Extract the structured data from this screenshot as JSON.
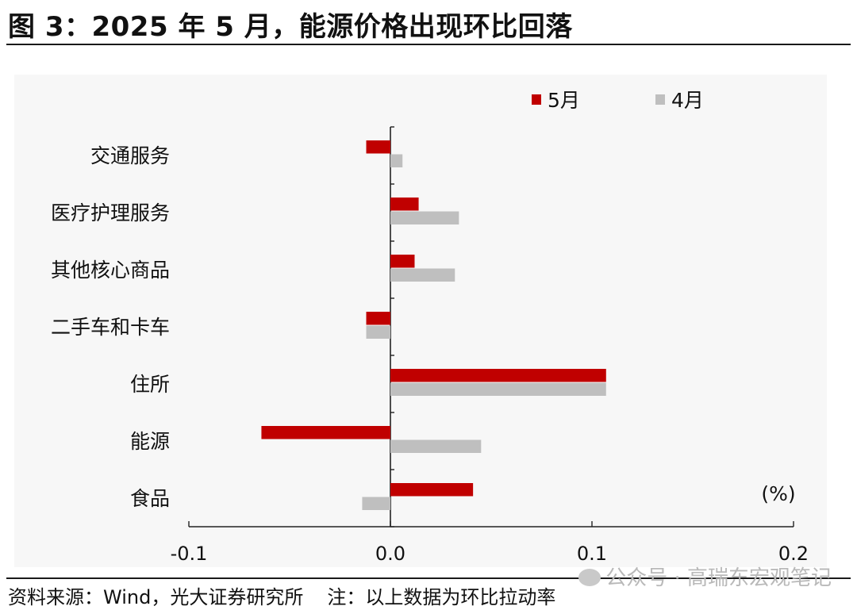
{
  "figure_title": "图 3：2025 年 5 月，能源价格出现环比回落",
  "source": "资料来源：Wind，光大证券研究所",
  "note": "注：以上数据为环比拉动率",
  "watermark": "公众号 · 高瑞东宏观笔记",
  "chart_data": {
    "type": "bar",
    "orientation": "horizontal",
    "categories": [
      "交通服务",
      "医疗护理服务",
      "其他核心商品",
      "二手车和卡车",
      "住所",
      "能源",
      "食品"
    ],
    "series": [
      {
        "name": "5月",
        "color": "#c00000",
        "values": [
          -0.012,
          0.014,
          0.012,
          -0.012,
          0.107,
          -0.064,
          0.041
        ]
      },
      {
        "name": "4月",
        "color": "#bfbfbf",
        "values": [
          0.006,
          0.034,
          0.032,
          -0.012,
          0.107,
          0.045,
          -0.014
        ]
      }
    ],
    "xlim": [
      -0.1,
      0.2
    ],
    "xticks": [
      "-0.1",
      "0.0",
      "0.1",
      "0.2"
    ],
    "xtick_values": [
      -0.1,
      0.0,
      0.1,
      0.2
    ],
    "unit_label": "(%)",
    "legend_position": "top-right",
    "grid": false
  }
}
